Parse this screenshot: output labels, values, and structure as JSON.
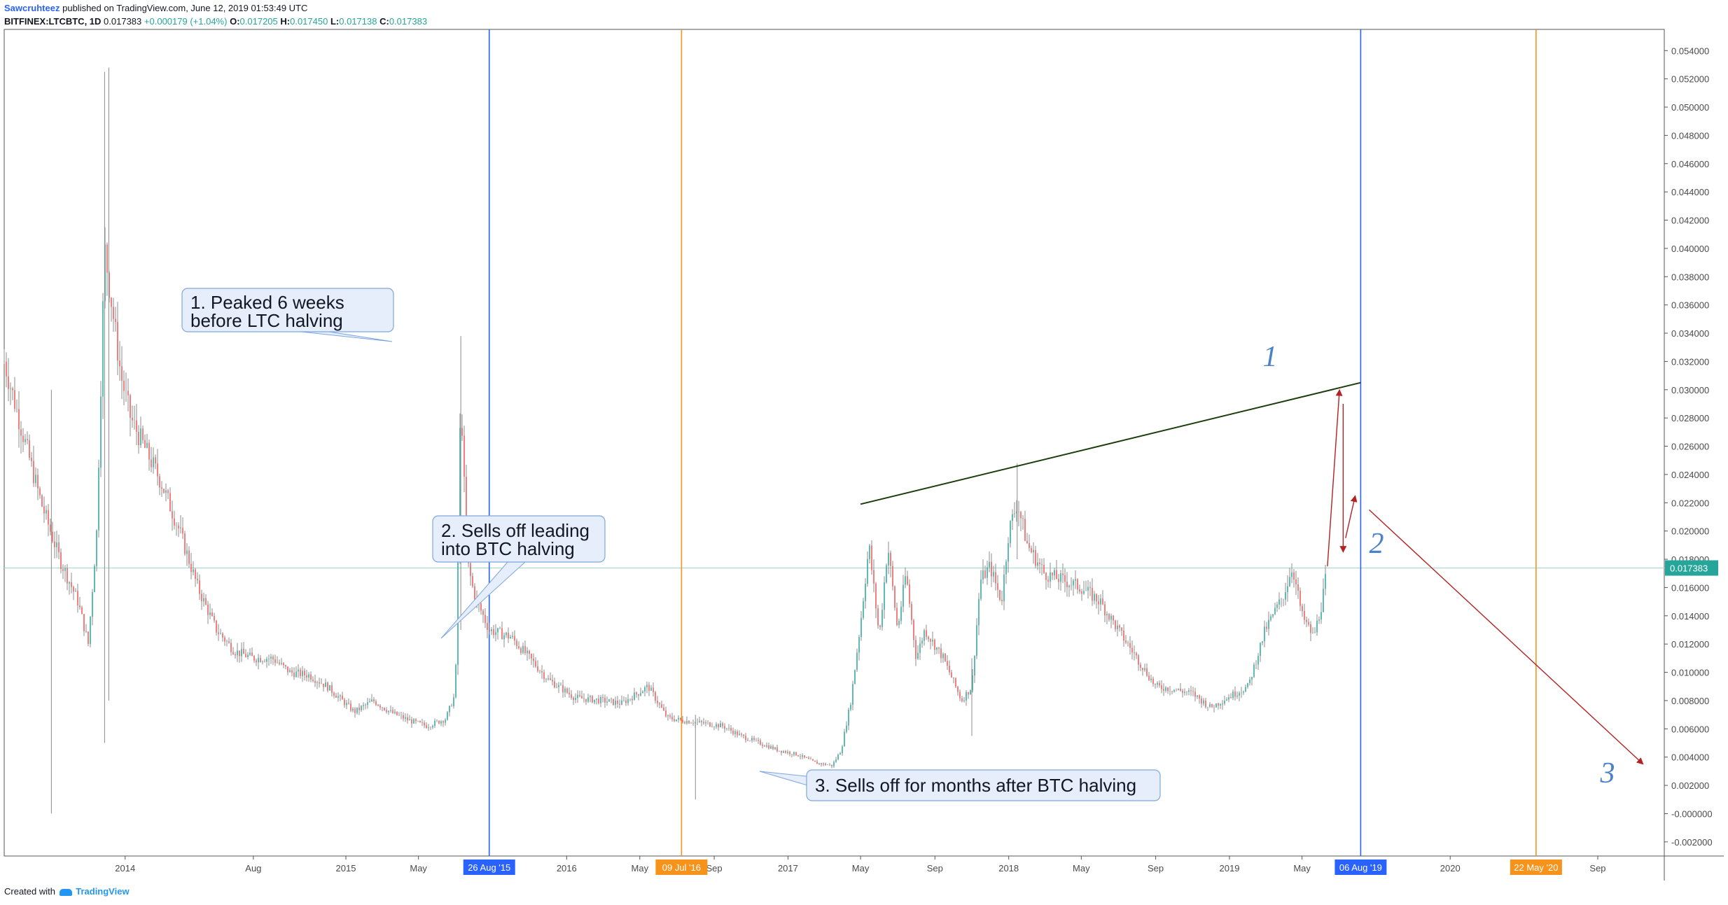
{
  "header": {
    "author": "Sawcruhteez",
    "published": "published on TradingView.com, June 12, 2019 01:53:49 UTC",
    "symbol": "BITFINEX:LTCBTC, 1D",
    "last": "0.017383",
    "change": "+0.000179 (+1.04%)",
    "o_label": "O:",
    "o": "0.017205",
    "h_label": "H:",
    "h": "0.017450",
    "l_label": "L:",
    "l": "0.017138",
    "c_label": "C:",
    "c": "0.017383"
  },
  "footer": {
    "created_with": "Created with",
    "brand": "TradingView"
  },
  "colors": {
    "up": "#26a69a",
    "down": "#ef5350",
    "candle": "#8c8c8c",
    "blue_line": "#2962ff",
    "orange_line": "#f7931a",
    "trend": "#1b3d0a",
    "arrow": "#b22222",
    "price_badge": "#26a69a"
  },
  "chart_data": {
    "type": "line",
    "symbol": "BITFINEX:LTCBTC",
    "interval": "1D",
    "ylim": [
      -0.003,
      0.0555
    ],
    "xlim": [
      "2013-06-15",
      "2020-12-20"
    ],
    "y_ticks": [
      "0.054000",
      "0.052000",
      "0.050000",
      "0.048000",
      "0.046000",
      "0.044000",
      "0.042000",
      "0.040000",
      "0.038000",
      "0.036000",
      "0.034000",
      "0.032000",
      "0.030000",
      "0.028000",
      "0.026000",
      "0.024000",
      "0.022000",
      "0.020000",
      "0.018000",
      "0.016000",
      "0.014000",
      "0.012000",
      "0.010000",
      "0.008000",
      "0.006000",
      "0.004000",
      "0.002000",
      "-0.000000",
      "-0.002000"
    ],
    "x_ticks": [
      {
        "date": "2014-01-01",
        "label": "2014"
      },
      {
        "date": "2014-08-01",
        "label": "Aug"
      },
      {
        "date": "2015-01-01",
        "label": "2015"
      },
      {
        "date": "2015-05-01",
        "label": "May"
      },
      {
        "date": "2016-01-01",
        "label": "2016"
      },
      {
        "date": "2016-05-01",
        "label": "May"
      },
      {
        "date": "2016-09-01",
        "label": "Sep"
      },
      {
        "date": "2017-01-01",
        "label": "2017"
      },
      {
        "date": "2017-05-01",
        "label": "May"
      },
      {
        "date": "2017-09-01",
        "label": "Sep"
      },
      {
        "date": "2018-01-01",
        "label": "2018"
      },
      {
        "date": "2018-05-01",
        "label": "May"
      },
      {
        "date": "2018-09-01",
        "label": "Sep"
      },
      {
        "date": "2019-01-01",
        "label": "2019"
      },
      {
        "date": "2019-05-01",
        "label": "May"
      },
      {
        "date": "2020-01-01",
        "label": "2020"
      },
      {
        "date": "2020-09-01",
        "label": "Sep"
      }
    ],
    "series": [
      {
        "values": [
          [
            "2013-06-15",
            0.032
          ],
          [
            "2013-07-15",
            0.027
          ],
          [
            "2013-08-15",
            0.022
          ],
          [
            "2013-09-15",
            0.018
          ],
          [
            "2013-10-15",
            0.015
          ],
          [
            "2013-11-01",
            0.012
          ],
          [
            "2013-11-15",
            0.02
          ],
          [
            "2013-11-28",
            0.04
          ],
          [
            "2013-12-10",
            0.036
          ],
          [
            "2013-12-25",
            0.031
          ],
          [
            "2014-01-10",
            0.028
          ],
          [
            "2014-02-01",
            0.026
          ],
          [
            "2014-03-01",
            0.0235
          ],
          [
            "2014-04-01",
            0.02
          ],
          [
            "2014-05-01",
            0.016
          ],
          [
            "2014-06-01",
            0.013
          ],
          [
            "2014-07-01",
            0.0115
          ],
          [
            "2014-08-01",
            0.011
          ],
          [
            "2014-09-01",
            0.011
          ],
          [
            "2014-10-01",
            0.01
          ],
          [
            "2014-11-01",
            0.0098
          ],
          [
            "2014-12-01",
            0.009
          ],
          [
            "2015-01-15",
            0.0072
          ],
          [
            "2015-02-15",
            0.008
          ],
          [
            "2015-03-15",
            0.0072
          ],
          [
            "2015-04-15",
            0.0066
          ],
          [
            "2015-05-15",
            0.0062
          ],
          [
            "2015-06-15",
            0.0067
          ],
          [
            "2015-07-01",
            0.0085
          ],
          [
            "2015-07-10",
            0.03
          ],
          [
            "2015-07-20",
            0.018
          ],
          [
            "2015-08-01",
            0.0155
          ],
          [
            "2015-08-26",
            0.013
          ],
          [
            "2015-10-01",
            0.0125
          ],
          [
            "2015-11-01",
            0.011
          ],
          [
            "2015-12-01",
            0.0095
          ],
          [
            "2016-01-15",
            0.0082
          ],
          [
            "2016-03-01",
            0.008
          ],
          [
            "2016-04-01",
            0.0078
          ],
          [
            "2016-05-15",
            0.009
          ],
          [
            "2016-06-15",
            0.0068
          ],
          [
            "2016-07-09",
            0.0066
          ],
          [
            "2016-08-15",
            0.0064
          ],
          [
            "2016-09-15",
            0.0062
          ],
          [
            "2016-10-15",
            0.0055
          ],
          [
            "2016-11-15",
            0.005
          ],
          [
            "2016-12-15",
            0.0045
          ],
          [
            "2017-01-15",
            0.0042
          ],
          [
            "2017-02-15",
            0.0036
          ],
          [
            "2017-03-15",
            0.0034
          ],
          [
            "2017-03-30",
            0.0045
          ],
          [
            "2017-04-15",
            0.008
          ],
          [
            "2017-05-01",
            0.0135
          ],
          [
            "2017-05-15",
            0.019
          ],
          [
            "2017-06-01",
            0.0125
          ],
          [
            "2017-06-15",
            0.019
          ],
          [
            "2017-07-01",
            0.013
          ],
          [
            "2017-07-15",
            0.017
          ],
          [
            "2017-08-01",
            0.011
          ],
          [
            "2017-08-15",
            0.013
          ],
          [
            "2017-09-15",
            0.011
          ],
          [
            "2017-10-15",
            0.008
          ],
          [
            "2017-11-01",
            0.009
          ],
          [
            "2017-11-15",
            0.0165
          ],
          [
            "2017-12-01",
            0.0175
          ],
          [
            "2017-12-20",
            0.015
          ],
          [
            "2018-01-01",
            0.02
          ],
          [
            "2018-01-15",
            0.022
          ],
          [
            "2018-02-01",
            0.019
          ],
          [
            "2018-03-01",
            0.017
          ],
          [
            "2018-04-01",
            0.0165
          ],
          [
            "2018-05-01",
            0.016
          ],
          [
            "2018-06-01",
            0.015
          ],
          [
            "2018-07-01",
            0.013
          ],
          [
            "2018-08-01",
            0.011
          ],
          [
            "2018-09-01",
            0.009
          ],
          [
            "2018-10-01",
            0.0088
          ],
          [
            "2018-11-01",
            0.0085
          ],
          [
            "2018-12-01",
            0.0075
          ],
          [
            "2019-01-01",
            0.0083
          ],
          [
            "2019-02-01",
            0.009
          ],
          [
            "2019-03-01",
            0.013
          ],
          [
            "2019-04-01",
            0.0155
          ],
          [
            "2019-04-15",
            0.0175
          ],
          [
            "2019-05-01",
            0.014
          ],
          [
            "2019-05-20",
            0.0125
          ],
          [
            "2019-06-01",
            0.0145
          ],
          [
            "2019-06-12",
            0.0174
          ]
        ]
      }
    ],
    "last_price_label": "0.017383",
    "vertical_lines": [
      {
        "date": "2015-08-26",
        "label": "26 Aug '15",
        "color": "#2962ff"
      },
      {
        "date": "2016-07-09",
        "label": "09 Jul '16",
        "color": "#f7931a"
      },
      {
        "date": "2019-08-06",
        "label": "06 Aug '19",
        "color": "#2962ff"
      },
      {
        "date": "2020-05-22",
        "label": "22 May '20",
        "color": "#f7931a"
      }
    ],
    "trendline": [
      [
        "2017-05-01",
        0.0219
      ],
      [
        "2019-08-06",
        0.0305
      ]
    ],
    "annotations": [
      {
        "lines": [
          "1. Peaked 6 weeks",
          "before LTC halving"
        ]
      },
      {
        "lines": [
          "2. Sells off leading",
          "into BTC halving"
        ]
      },
      {
        "lines": [
          "3. Sells off for months after BTC halving"
        ]
      }
    ],
    "wave_numbers": [
      "1",
      "2",
      "3"
    ]
  }
}
